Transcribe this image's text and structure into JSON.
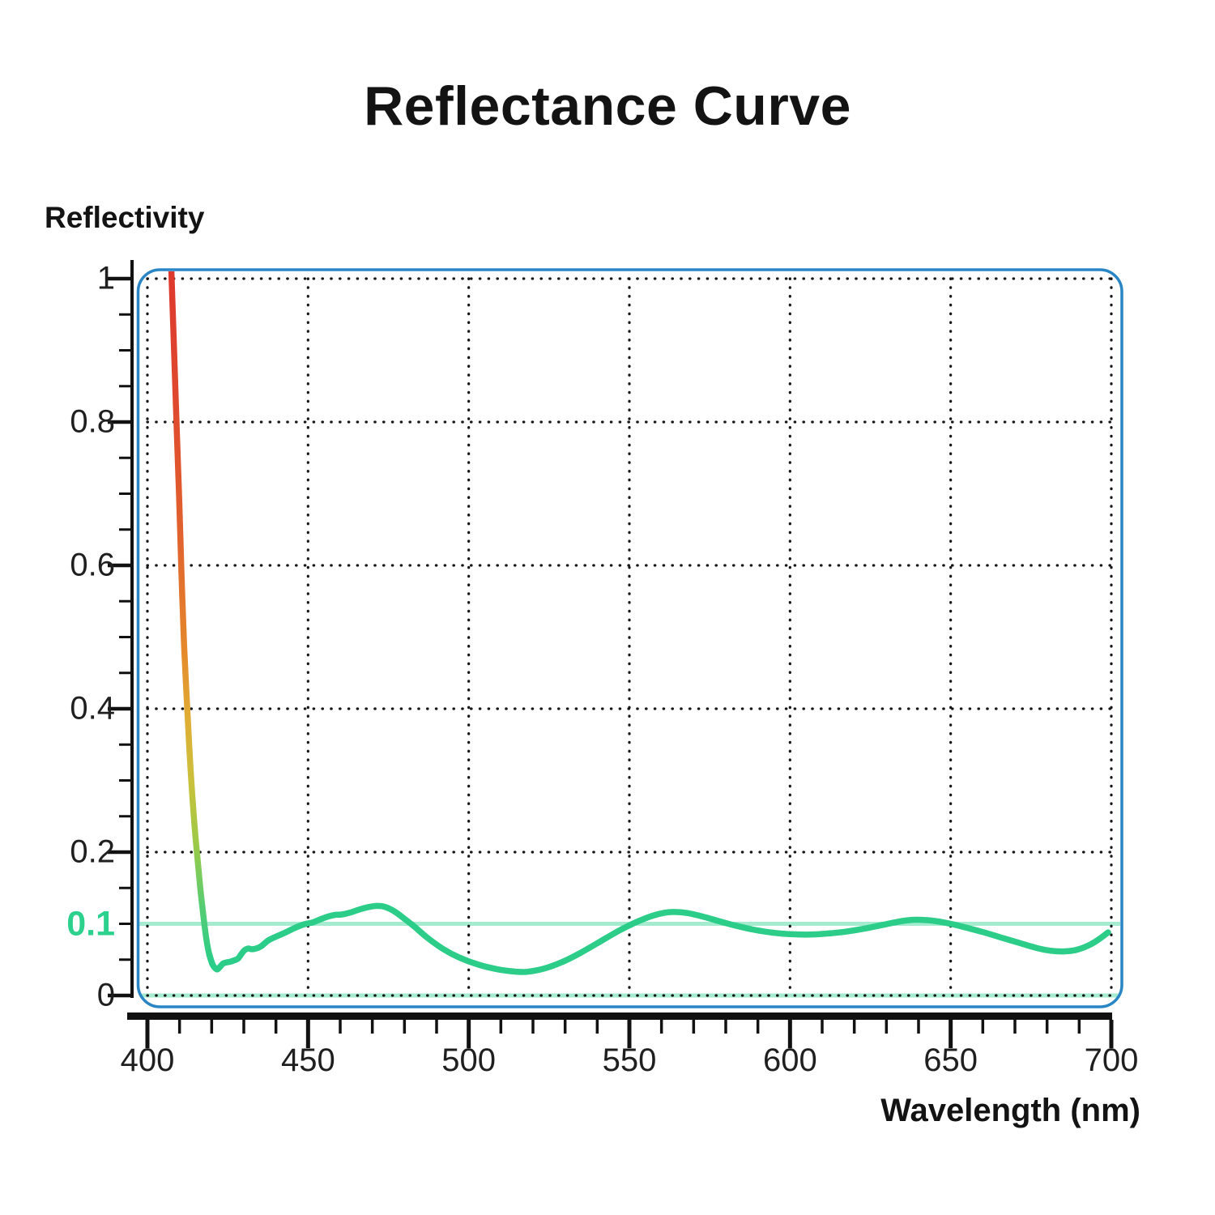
{
  "title": "Reflectance Curve",
  "chart_data": {
    "type": "line",
    "title": "Reflectance Curve",
    "xlabel": "Wavelength (nm)",
    "ylabel": "Reflectivity",
    "xlim": [
      400,
      700
    ],
    "ylim": [
      0,
      1
    ],
    "x_ticks": [
      400,
      450,
      500,
      550,
      600,
      650,
      700
    ],
    "x_minor_step": 10,
    "y_ticks": [
      1,
      0.8,
      0.6,
      0.4,
      0.2,
      0
    ],
    "y_minor_step": 0.05,
    "grid": "dotted-both-axes",
    "legend": "none",
    "highlight_tick": {
      "label": "0.1",
      "value": 0.1
    },
    "reference_lines": [
      {
        "axis": "y",
        "value": 0.1,
        "style": "solid-mint"
      },
      {
        "axis": "y",
        "value": 0.0,
        "style": "solid-mint"
      }
    ],
    "series": [
      {
        "name": "reflectance",
        "color_profile": "red-orange-yellow-to-green gradient on initial drop, green elsewhere",
        "points": [
          [
            407.4,
            1.017
          ],
          [
            408.0,
            0.94
          ],
          [
            408.6,
            0.86
          ],
          [
            409.2,
            0.78
          ],
          [
            409.9,
            0.69
          ],
          [
            410.6,
            0.59
          ],
          [
            411.4,
            0.49
          ],
          [
            412.4,
            0.4
          ],
          [
            413.5,
            0.31
          ],
          [
            414.7,
            0.235
          ],
          [
            415.6,
            0.19
          ],
          [
            416.5,
            0.148
          ],
          [
            417.5,
            0.108
          ],
          [
            418.3,
            0.08
          ],
          [
            419.2,
            0.058
          ],
          [
            420.2,
            0.044
          ],
          [
            421.0,
            0.0385
          ],
          [
            421.8,
            0.0365
          ],
          [
            422.7,
            0.0405
          ],
          [
            423.5,
            0.0445
          ],
          [
            424.5,
            0.046
          ],
          [
            425.7,
            0.047
          ],
          [
            427.0,
            0.049
          ],
          [
            428.2,
            0.0515
          ],
          [
            429.2,
            0.0575
          ],
          [
            430.2,
            0.063
          ],
          [
            431.3,
            0.0655
          ],
          [
            432.5,
            0.0645
          ],
          [
            433.8,
            0.0655
          ],
          [
            435.5,
            0.069
          ],
          [
            437.5,
            0.0765
          ],
          [
            440.0,
            0.082
          ],
          [
            443.0,
            0.088
          ],
          [
            446.0,
            0.0945
          ],
          [
            449.0,
            0.0995
          ],
          [
            451.5,
            0.102
          ],
          [
            454.0,
            0.1065
          ],
          [
            456.5,
            0.1105
          ],
          [
            458.5,
            0.1125
          ],
          [
            460.5,
            0.113
          ],
          [
            463.0,
            0.1155
          ],
          [
            466.0,
            0.12
          ],
          [
            469.0,
            0.1235
          ],
          [
            471.5,
            0.125
          ],
          [
            474.0,
            0.1235
          ],
          [
            477.0,
            0.117
          ],
          [
            480.0,
            0.107
          ],
          [
            483.0,
            0.0965
          ],
          [
            487.0,
            0.081
          ],
          [
            492.0,
            0.065
          ],
          [
            497.0,
            0.053
          ],
          [
            503.0,
            0.043
          ],
          [
            509.0,
            0.0365
          ],
          [
            514.0,
            0.0335
          ],
          [
            518.0,
            0.033
          ],
          [
            523.0,
            0.037
          ],
          [
            529.0,
            0.0465
          ],
          [
            535.0,
            0.06
          ],
          [
            541.0,
            0.0755
          ],
          [
            547.0,
            0.091
          ],
          [
            552.0,
            0.102
          ],
          [
            557.0,
            0.111
          ],
          [
            561.0,
            0.1155
          ],
          [
            564.0,
            0.1165
          ],
          [
            568.0,
            0.115
          ],
          [
            573.0,
            0.11
          ],
          [
            578.0,
            0.1035
          ],
          [
            583.0,
            0.0975
          ],
          [
            589.0,
            0.0915
          ],
          [
            595.0,
            0.0875
          ],
          [
            600.0,
            0.0855
          ],
          [
            606.0,
            0.085
          ],
          [
            612.0,
            0.0865
          ],
          [
            618.0,
            0.0895
          ],
          [
            624.0,
            0.094
          ],
          [
            630.0,
            0.0995
          ],
          [
            635.0,
            0.104
          ],
          [
            638.0,
            0.1055
          ],
          [
            641.0,
            0.1055
          ],
          [
            645.0,
            0.104
          ],
          [
            650.0,
            0.1
          ],
          [
            655.0,
            0.0945
          ],
          [
            660.0,
            0.0885
          ],
          [
            666.0,
            0.0805
          ],
          [
            672.0,
            0.0725
          ],
          [
            677.0,
            0.066
          ],
          [
            681.0,
            0.0625
          ],
          [
            685.0,
            0.0615
          ],
          [
            689.0,
            0.0635
          ],
          [
            693.0,
            0.07
          ],
          [
            696.0,
            0.078
          ],
          [
            699.0,
            0.088
          ]
        ]
      }
    ]
  },
  "colors": {
    "curve_green": "#2bcd88",
    "mint_line": "#a5ebd0",
    "border_blue": "#2a85c5",
    "grid_dot": "#161616",
    "axis_black": "#111111",
    "tick_text": "#1f1f1f",
    "highlight_label_green": "#2bd18d",
    "descent_gradient": [
      "#dd382d",
      "#df4a2e",
      "#e1652e",
      "#e5892c",
      "#dfae34",
      "#c9c13c",
      "#9aca47",
      "#55cd74",
      "#2bcd88"
    ],
    "descent_gradient_offsets": [
      0,
      0.2,
      0.4,
      0.55,
      0.65,
      0.74,
      0.83,
      0.92,
      1
    ]
  }
}
